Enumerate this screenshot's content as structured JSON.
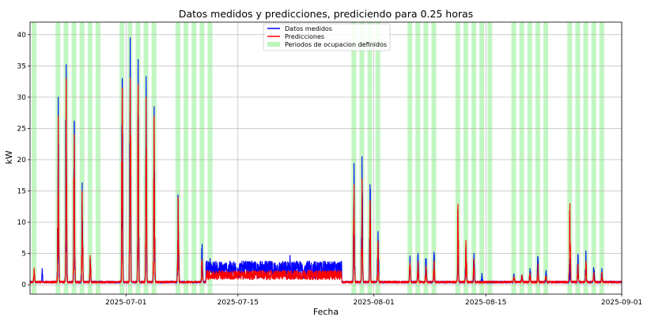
{
  "chart_data": {
    "type": "line",
    "title": "Datos medidos y predicciones, prediciendo para 0.25 horas",
    "xlabel": "Fecha",
    "ylabel": "kW",
    "xlim": [
      "2025-06-19",
      "2025-09-01"
    ],
    "ylim": [
      -1.5,
      42
    ],
    "yticks": [
      0,
      5,
      10,
      15,
      20,
      25,
      30,
      35,
      40
    ],
    "xticks": [
      {
        "date": "2025-07-01",
        "label": "2025-07-01"
      },
      {
        "date": "2025-07-15",
        "label": "2025-07-15"
      },
      {
        "date": "2025-08-01",
        "label": "2025-08-01"
      },
      {
        "date": "2025-08-15",
        "label": "2025-08-15"
      },
      {
        "date": "2025-09-01",
        "label": "2025-09-01"
      }
    ],
    "grid": true,
    "legend": {
      "position": "top-center",
      "entries": [
        {
          "label": "Datos medidos",
          "color": "#0000ff",
          "kind": "line"
        },
        {
          "label": "Predicciones",
          "color": "#ff0000",
          "kind": "line"
        },
        {
          "label": "Periodos de ocupacion definidos",
          "color": "#90ee90",
          "kind": "patch"
        }
      ]
    },
    "occupancy_days": [
      "2025-06-19",
      "2025-06-22",
      "2025-06-23",
      "2025-06-24",
      "2025-06-25",
      "2025-06-26",
      "2025-06-27",
      "2025-06-30",
      "2025-07-01",
      "2025-07-02",
      "2025-07-03",
      "2025-07-04",
      "2025-07-07",
      "2025-07-08",
      "2025-07-09",
      "2025-07-10",
      "2025-07-11",
      "2025-07-29",
      "2025-07-30",
      "2025-07-31",
      "2025-08-01",
      "2025-08-05",
      "2025-08-06",
      "2025-08-07",
      "2025-08-08",
      "2025-08-11",
      "2025-08-12",
      "2025-08-13",
      "2025-08-14",
      "2025-08-15",
      "2025-08-18",
      "2025-08-19",
      "2025-08-20",
      "2025-08-21",
      "2025-08-22",
      "2025-08-25",
      "2025-08-26",
      "2025-08-27",
      "2025-08-28",
      "2025-08-29"
    ],
    "measured_peaks": [
      {
        "date": "2025-06-19",
        "value": 2.0
      },
      {
        "date": "2025-06-20",
        "value": 2.3
      },
      {
        "date": "2025-06-22",
        "value": 30.0
      },
      {
        "date": "2025-06-23",
        "value": 35.2
      },
      {
        "date": "2025-06-24",
        "value": 26.2
      },
      {
        "date": "2025-06-25",
        "value": 16.3
      },
      {
        "date": "2025-06-26",
        "value": 4.3
      },
      {
        "date": "2025-06-30",
        "value": 33.0
      },
      {
        "date": "2025-07-01",
        "value": 39.5
      },
      {
        "date": "2025-07-02",
        "value": 36.0
      },
      {
        "date": "2025-07-03",
        "value": 33.3
      },
      {
        "date": "2025-07-04",
        "value": 28.5
      },
      {
        "date": "2025-07-07",
        "value": 14.0
      },
      {
        "date": "2025-07-10",
        "value": 6.5
      },
      {
        "date": "2025-07-11",
        "value": 4.2
      },
      {
        "date": "2025-07-21",
        "value": 4.6
      },
      {
        "date": "2025-07-29",
        "value": 19.4
      },
      {
        "date": "2025-07-30",
        "value": 20.5
      },
      {
        "date": "2025-07-31",
        "value": 16.0
      },
      {
        "date": "2025-08-01",
        "value": 8.5
      },
      {
        "date": "2025-08-05",
        "value": 4.6
      },
      {
        "date": "2025-08-06",
        "value": 5.0
      },
      {
        "date": "2025-08-07",
        "value": 4.0
      },
      {
        "date": "2025-08-08",
        "value": 5.2
      },
      {
        "date": "2025-08-11",
        "value": 4.6
      },
      {
        "date": "2025-08-12",
        "value": 6.0
      },
      {
        "date": "2025-08-13",
        "value": 5.0
      },
      {
        "date": "2025-08-14",
        "value": 1.5
      },
      {
        "date": "2025-08-18",
        "value": 1.7
      },
      {
        "date": "2025-08-19",
        "value": 1.6
      },
      {
        "date": "2025-08-20",
        "value": 2.6
      },
      {
        "date": "2025-08-21",
        "value": 4.5
      },
      {
        "date": "2025-08-22",
        "value": 1.8
      },
      {
        "date": "2025-08-25",
        "value": 4.0
      },
      {
        "date": "2025-08-26",
        "value": 4.8
      },
      {
        "date": "2025-08-27",
        "value": 5.4
      },
      {
        "date": "2025-08-28",
        "value": 2.5
      },
      {
        "date": "2025-08-29",
        "value": 2.6
      }
    ],
    "predicted_peaks": [
      {
        "date": "2025-06-19",
        "value": 2.3
      },
      {
        "date": "2025-06-22",
        "value": 27.0
      },
      {
        "date": "2025-06-23",
        "value": 33.0
      },
      {
        "date": "2025-06-24",
        "value": 24.0
      },
      {
        "date": "2025-06-25",
        "value": 15.0
      },
      {
        "date": "2025-06-26",
        "value": 4.3
      },
      {
        "date": "2025-06-30",
        "value": 31.5
      },
      {
        "date": "2025-07-01",
        "value": 33.0
      },
      {
        "date": "2025-07-02",
        "value": 32.0
      },
      {
        "date": "2025-07-03",
        "value": 30.0
      },
      {
        "date": "2025-07-04",
        "value": 27.0
      },
      {
        "date": "2025-07-07",
        "value": 14.0
      },
      {
        "date": "2025-07-10",
        "value": 4.0
      },
      {
        "date": "2025-07-29",
        "value": 16.0
      },
      {
        "date": "2025-07-30",
        "value": 17.0
      },
      {
        "date": "2025-07-31",
        "value": 13.5
      },
      {
        "date": "2025-08-01",
        "value": 7.0
      },
      {
        "date": "2025-08-05",
        "value": 3.5
      },
      {
        "date": "2025-08-06",
        "value": 3.5
      },
      {
        "date": "2025-08-07",
        "value": 3.0
      },
      {
        "date": "2025-08-08",
        "value": 3.8
      },
      {
        "date": "2025-08-11",
        "value": 12.9
      },
      {
        "date": "2025-08-12",
        "value": 7.1
      },
      {
        "date": "2025-08-13",
        "value": 3.7
      },
      {
        "date": "2025-08-18",
        "value": 1.2
      },
      {
        "date": "2025-08-19",
        "value": 1.3
      },
      {
        "date": "2025-08-20",
        "value": 1.8
      },
      {
        "date": "2025-08-21",
        "value": 2.8
      },
      {
        "date": "2025-08-22",
        "value": 1.4
      },
      {
        "date": "2025-08-25",
        "value": 13.0
      },
      {
        "date": "2025-08-26",
        "value": 3.0
      },
      {
        "date": "2025-08-27",
        "value": 3.5
      },
      {
        "date": "2025-08-28",
        "value": 2.0
      },
      {
        "date": "2025-08-29",
        "value": 1.5
      }
    ],
    "plateau": {
      "start": "2025-07-11",
      "end": "2025-07-28",
      "measured_high": 3.8,
      "measured_low": 1.0,
      "predicted_high": 2.3
    }
  }
}
